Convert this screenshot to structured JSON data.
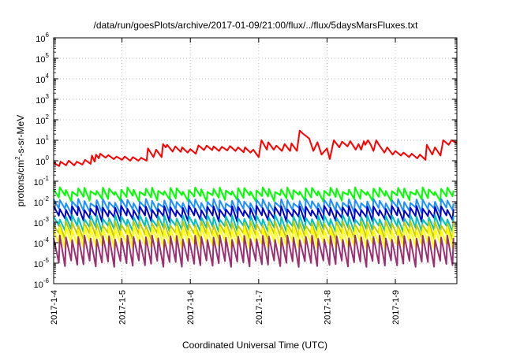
{
  "chart_data": {
    "type": "line",
    "title": "/data/run/goesPlots/archive/2017-01-09/21:00/flux/../flux/5daysMarsFluxes.txt",
    "xlabel": "Coordinated Universal Time (UTC)",
    "ylabel": "protons/cm2-s-sr-MeV",
    "y_scale": "log",
    "ylim": [
      1e-06,
      1000000.0
    ],
    "xlim": [
      0,
      5.9
    ],
    "y_ticks": [
      {
        "value": 1e-06,
        "base": "10",
        "exp": "-6"
      },
      {
        "value": 1e-05,
        "base": "10",
        "exp": "-5"
      },
      {
        "value": 0.0001,
        "base": "10",
        "exp": "-4"
      },
      {
        "value": 0.001,
        "base": "10",
        "exp": "-3"
      },
      {
        "value": 0.01,
        "base": "10",
        "exp": "-2"
      },
      {
        "value": 0.1,
        "base": "10",
        "exp": "-1"
      },
      {
        "value": 1,
        "base": "10",
        "exp": "0"
      },
      {
        "value": 10,
        "base": "10",
        "exp": "1"
      },
      {
        "value": 100,
        "base": "10",
        "exp": "2"
      },
      {
        "value": 1000,
        "base": "10",
        "exp": "3"
      },
      {
        "value": 10000,
        "base": "10",
        "exp": "4"
      },
      {
        "value": 100000,
        "base": "10",
        "exp": "5"
      },
      {
        "value": 1000000,
        "base": "10",
        "exp": "6"
      }
    ],
    "x_ticks": [
      {
        "value": 0,
        "label": "2017-1-4"
      },
      {
        "value": 1,
        "label": "2017-1-5"
      },
      {
        "value": 2,
        "label": "2017-1-6"
      },
      {
        "value": 3,
        "label": "2017-1-7"
      },
      {
        "value": 4,
        "label": "2017-1-8"
      },
      {
        "value": 5,
        "label": "2017-1-9"
      }
    ],
    "grid": true,
    "colors": {
      "red": "#ff0000",
      "green": "#00ff00",
      "lightblue": "#1e90ff",
      "blue": "#0000cc",
      "cyan": "#00c0c0",
      "olive": "#c8c800",
      "yellow": "#ffff00",
      "purple": "#9b3070"
    },
    "series": [
      {
        "color_key": "red",
        "x": [
          0,
          0.08,
          0.1,
          0.18,
          0.22,
          0.3,
          0.34,
          0.42,
          0.46,
          0.54,
          0.56,
          0.6,
          0.62,
          0.66,
          0.68,
          0.76,
          0.8,
          0.88,
          0.92,
          1.0,
          1.04,
          1.12,
          1.16,
          1.24,
          1.28,
          1.36,
          1.38,
          1.46,
          1.5,
          1.58,
          1.6,
          1.64,
          1.66,
          1.74,
          1.78,
          1.86,
          1.88,
          1.96,
          2.0,
          2.08,
          2.12,
          2.2,
          2.24,
          2.32,
          2.34,
          2.42,
          2.46,
          2.54,
          2.58,
          2.66,
          2.7,
          2.78,
          2.8,
          2.88,
          2.92,
          3.0,
          3.04,
          3.12,
          3.14,
          3.22,
          3.26,
          3.34,
          3.38,
          3.46,
          3.48,
          3.56,
          3.6,
          3.64,
          3.74,
          3.8,
          3.86,
          3.92,
          4.0,
          4.04,
          4.1,
          4.18,
          4.22,
          4.3,
          4.34,
          4.42,
          4.46,
          4.5,
          4.54,
          4.56,
          4.6,
          4.64,
          4.68,
          4.72,
          4.76,
          4.84,
          4.88,
          4.96,
          5.0,
          5.08,
          5.12,
          5.2,
          5.24,
          5.32,
          5.36,
          5.44,
          5.46,
          5.54,
          5.58,
          5.66,
          5.7,
          5.78,
          5.82,
          5.9
        ],
        "y": [
          0.8,
          0.55,
          0.9,
          0.6,
          1.0,
          0.6,
          0.9,
          0.65,
          1.1,
          0.7,
          1.8,
          0.9,
          2.0,
          1.3,
          2.2,
          1.4,
          1.9,
          1.2,
          1.6,
          1.1,
          1.6,
          1.0,
          1.5,
          1.0,
          1.4,
          1.0,
          4.0,
          1.5,
          3.5,
          1.5,
          6.5,
          4.5,
          6.0,
          2.8,
          5.0,
          2.7,
          4.5,
          2.5,
          3.7,
          2.2,
          5.6,
          3.3,
          5.5,
          3.3,
          5.0,
          3.0,
          4.8,
          3.2,
          5.2,
          3.0,
          4.5,
          2.6,
          4.5,
          2.5,
          3.5,
          1.5,
          10.0,
          3.5,
          8.0,
          3.5,
          5.5,
          3.0,
          6.5,
          3.0,
          7.0,
          3.0,
          30.0,
          22.0,
          12.0,
          3.0,
          8.0,
          2.0,
          4.0,
          1.2,
          10.0,
          4.5,
          8.5,
          5.0,
          9.0,
          3.5,
          6.5,
          3.5,
          9.0,
          6.0,
          10.0,
          6.0,
          3.0,
          10.0,
          6.0,
          2.5,
          4.5,
          2.0,
          3.0,
          1.8,
          2.5,
          1.5,
          2.2,
          1.3,
          2.0,
          1.1,
          6.0,
          2.0,
          4.5,
          1.8,
          10.0,
          6.0,
          10.0,
          7.0
        ]
      }
    ],
    "band_series": [
      {
        "color_key": "green",
        "high": 0.04,
        "low": 0.016
      },
      {
        "color_key": "lightblue",
        "high": 0.011,
        "low": 0.004
      },
      {
        "color_key": "blue",
        "high": 0.005,
        "low": 0.0016
      },
      {
        "color_key": "cyan",
        "high": 0.0018,
        "low": 0.0005
      },
      {
        "color_key": "olive",
        "high": 0.0009,
        "low": 0.00022
      },
      {
        "color_key": "yellow",
        "high": 0.0005,
        "low": 8e-05
      },
      {
        "color_key": "purple",
        "high": 0.00018,
        "low": 1e-05
      }
    ],
    "band_period_days": 0.09
  }
}
